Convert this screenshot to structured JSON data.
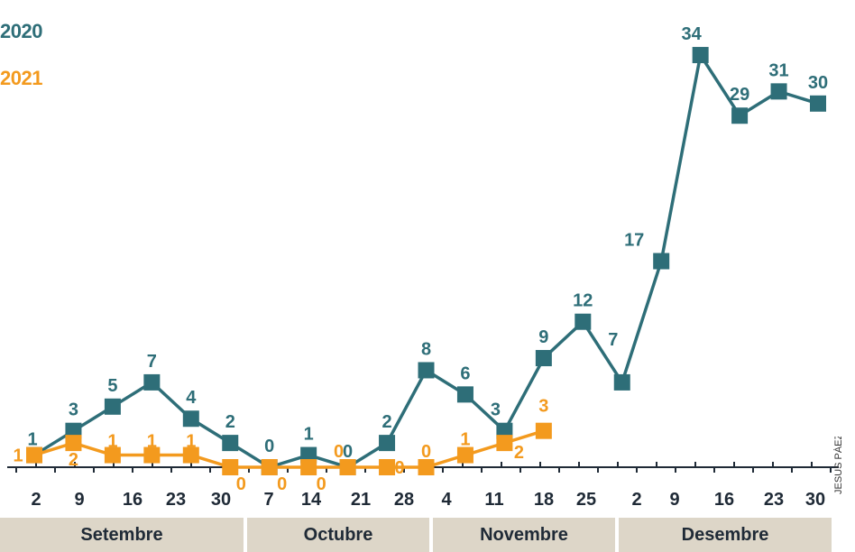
{
  "colors": {
    "series_2020": "#2e6e78",
    "series_2021": "#f39a1e",
    "axis": "#1f2a36",
    "month_band": "#ddd6c8"
  },
  "credit": "JESUS PÁEZ",
  "chart_data": {
    "type": "line",
    "title": "",
    "xlabel": "",
    "ylabel": "",
    "ylim": [
      0,
      34
    ],
    "grid": false,
    "legend_position": "top-left",
    "tick_labels": [
      "2",
      "9",
      "16",
      "23",
      "30",
      "7",
      "14",
      "21",
      "28",
      "4",
      "11",
      "18",
      "25",
      "2",
      "9",
      "16",
      "23",
      "30"
    ],
    "months": [
      "Setembre",
      "Octubre",
      "Novembre",
      "Desembre"
    ],
    "series": [
      {
        "name": "2020",
        "color": "#2e6e78",
        "values": [
          1,
          3,
          5,
          7,
          4,
          2,
          0,
          1,
          0,
          2,
          8,
          6,
          3,
          9,
          12,
          7,
          17,
          34,
          29,
          31,
          30
        ]
      },
      {
        "name": "2021",
        "color": "#f39a1e",
        "values": [
          1,
          2,
          1,
          1,
          1,
          0,
          0,
          0,
          0,
          0,
          0,
          1,
          2,
          3
        ]
      }
    ]
  }
}
